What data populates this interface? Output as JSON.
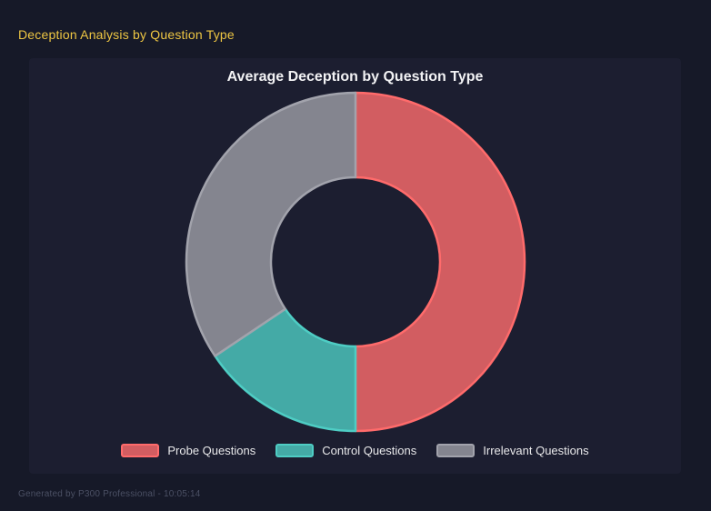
{
  "page": {
    "title": "Deception Analysis by Question Type",
    "footer": "Generated by P300 Professional - 10:05:14"
  },
  "chart": {
    "title": "Average Deception by Question Type"
  },
  "chart_data": {
    "type": "pie",
    "subtype": "doughnut",
    "title": "Average Deception by Question Type",
    "labels": [
      "Probe Questions",
      "Control Questions",
      "Irrelevant Questions"
    ],
    "values_percent": [
      50,
      15.6,
      34.4
    ],
    "start_angle_deg": 0,
    "direction": "clockwise",
    "cutout_ratio": 0.5,
    "legend_position": "bottom",
    "segment_fill_colors": [
      "#d25d61",
      "#44aaa6",
      "#84858f"
    ],
    "segment_border_colors": [
      "#ff6b6b",
      "#4ecdc4",
      "#a2a3ac"
    ]
  },
  "colors": {
    "page_background": "#161928",
    "panel_background": "#1c1e30",
    "accent_title": "#eec643",
    "chart_title_text": "#f2f2f4",
    "legend_text": "#e8e8ea",
    "footer_text": "#4b5064"
  }
}
